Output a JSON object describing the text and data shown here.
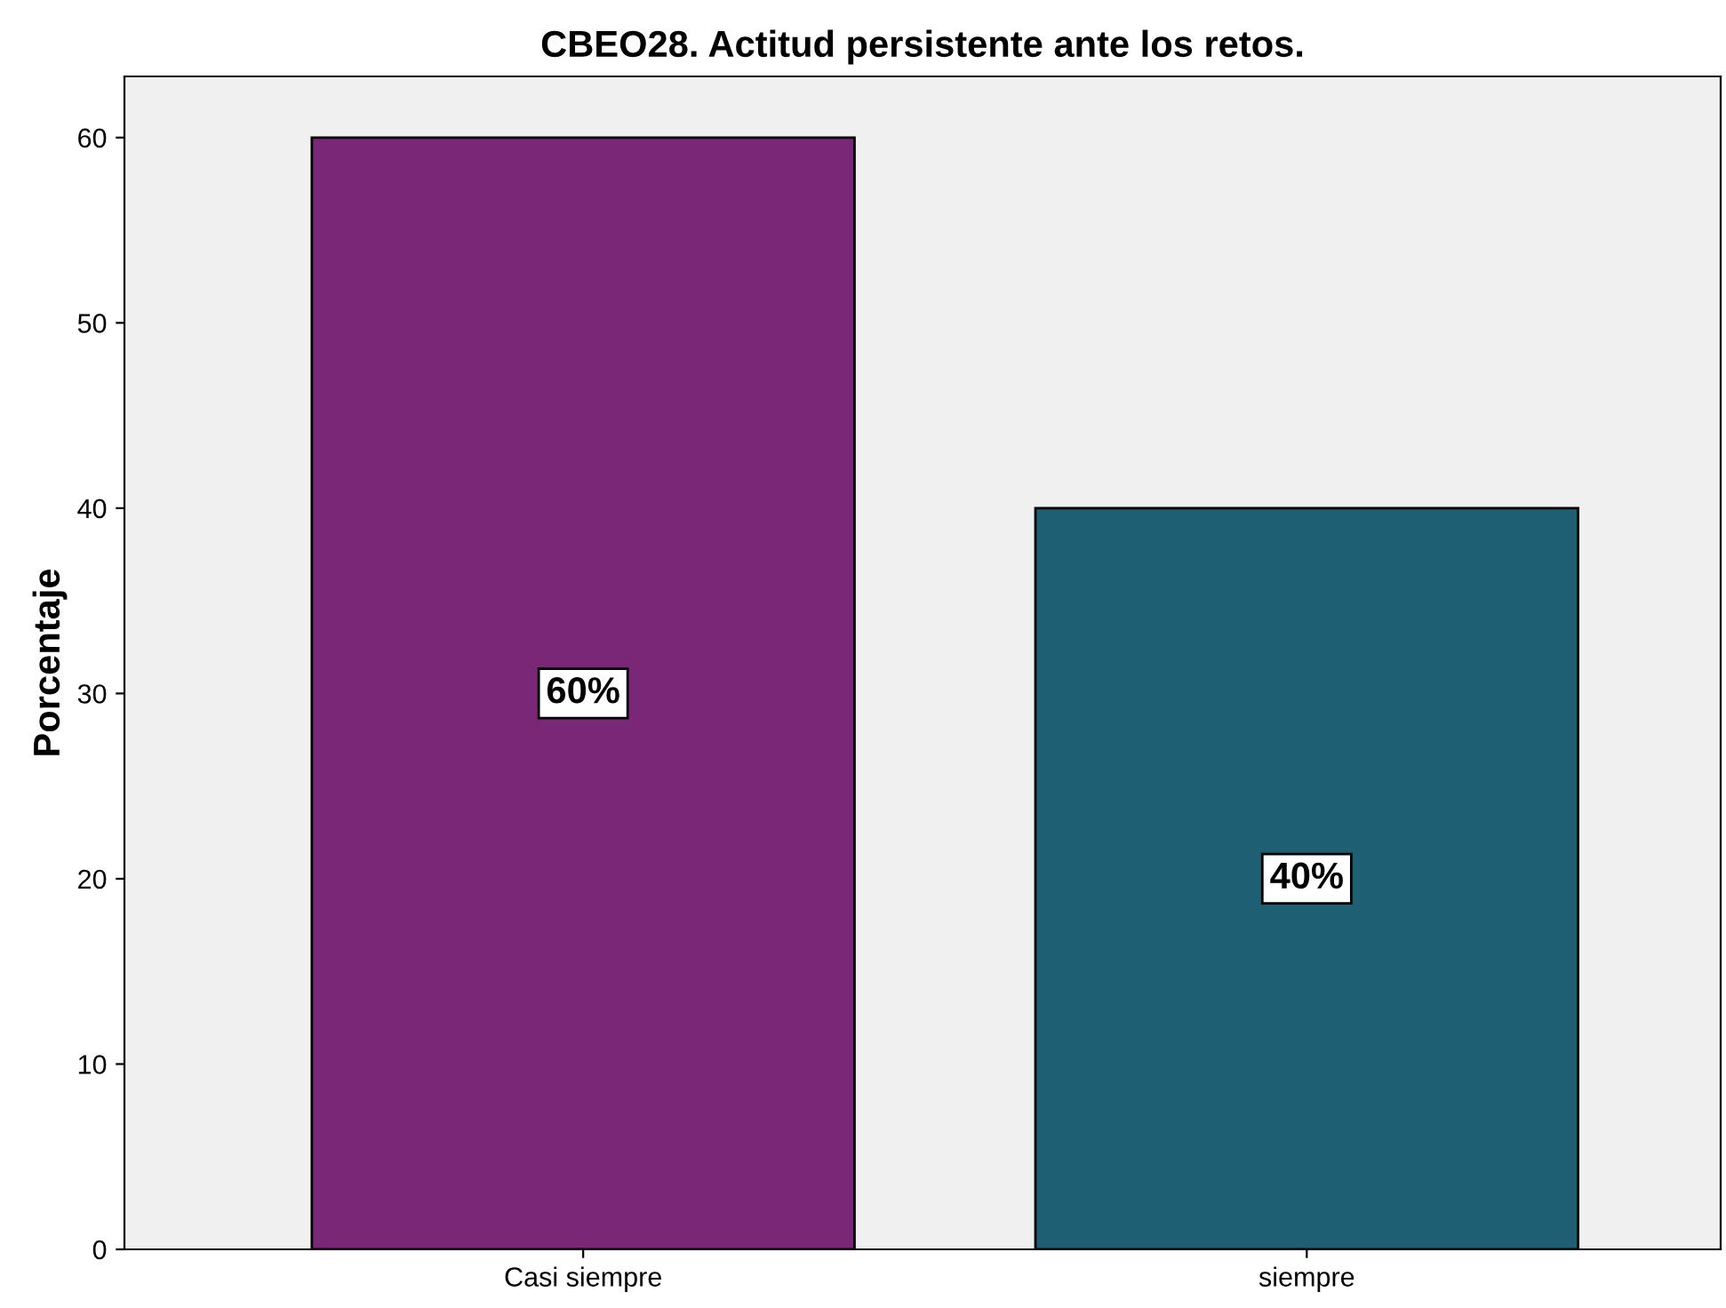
{
  "chart_data": {
    "type": "bar",
    "title": "CBEO28. Actitud persistente ante los retos.",
    "ylabel": "Porcentaje",
    "categories": [
      "Casi siempre",
      "siempre"
    ],
    "values": [
      60,
      40
    ],
    "colors": [
      "#7b2778",
      "#1e5f74"
    ],
    "value_labels": [
      "60%",
      "40%"
    ],
    "ylim": [
      0,
      63.3
    ],
    "yticks": [
      0,
      10,
      20,
      30,
      40,
      50,
      60
    ],
    "grid": false,
    "legend": false
  }
}
